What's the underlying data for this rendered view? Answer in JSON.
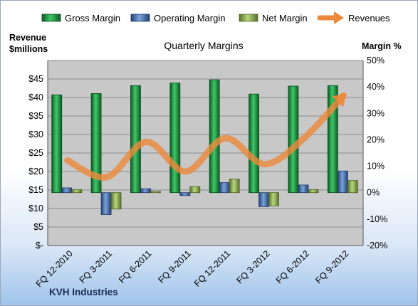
{
  "chart_data": {
    "type": "bar",
    "title": "Quarterly Margins",
    "left_axis_label": [
      "Revenue",
      "$millions"
    ],
    "right_axis_label": "Margin %",
    "categories": [
      "FQ 12-2010",
      "FQ 3-2011",
      "FQ 6-2011",
      "FQ 9-2011",
      "FQ 12-2011",
      "FQ 3-2012",
      "FQ 6-2012",
      "FQ 9-2012"
    ],
    "left_ylim": [
      0,
      50
    ],
    "left_ticks": [
      "$-",
      "$5",
      "$10",
      "$15",
      "$20",
      "$25",
      "$30",
      "$35",
      "$40",
      "$45"
    ],
    "right_ylim": [
      -20,
      50
    ],
    "right_ticks": [
      "-20%",
      "-10%",
      "0%",
      "10%",
      "20%",
      "30%",
      "40%",
      "50%"
    ],
    "bar_series": [
      {
        "name": "Gross Margin",
        "color": "#1e8a3a",
        "values": [
          37,
          37.5,
          40.5,
          41.5,
          42.7,
          37.3,
          40.3,
          40.5
        ]
      },
      {
        "name": "Operating Margin",
        "color": "#4a74b3",
        "values": [
          1.8,
          -8.3,
          1.5,
          -1.1,
          3.8,
          -5.3,
          2.9,
          8.2
        ]
      },
      {
        "name": "Net Margin",
        "color": "#8db14f",
        "values": [
          1.1,
          -6.2,
          0.5,
          2.3,
          5.1,
          -5.0,
          1.2,
          4.6
        ]
      }
    ],
    "line_series": {
      "name": "Revenues",
      "color": "#ec8a3c",
      "values": [
        23,
        18.5,
        28,
        20,
        29,
        22,
        29,
        40.5
      ]
    },
    "grid": true,
    "legend_position": "top"
  },
  "footer": {
    "company": "KVH Industries"
  }
}
